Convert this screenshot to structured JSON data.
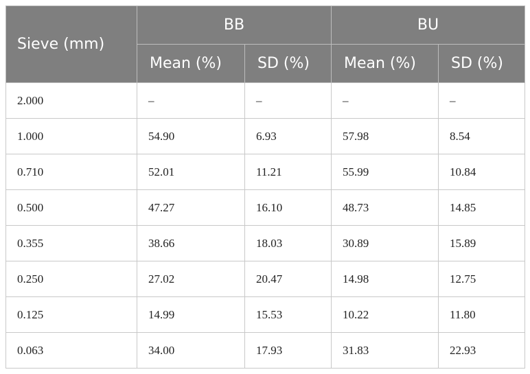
{
  "table": {
    "header": {
      "first": "Sieve (mm)",
      "groups": [
        "BB",
        "BU"
      ],
      "columns": [
        "Mean (%)",
        "SD (%)",
        "Mean (%)",
        "SD (%)"
      ]
    },
    "rows": [
      [
        "2.000",
        "–",
        "–",
        "–",
        "–"
      ],
      [
        "1.000",
        "54.90",
        "6.93",
        "57.98",
        "8.54"
      ],
      [
        "0.710",
        "52.01",
        "11.21",
        "55.99",
        "10.84"
      ],
      [
        "0.500",
        "47.27",
        "16.10",
        "48.73",
        "14.85"
      ],
      [
        "0.355",
        "38.66",
        "18.03",
        "30.89",
        "15.89"
      ],
      [
        "0.250",
        "27.02",
        "20.47",
        "14.98",
        "12.75"
      ],
      [
        "0.125",
        "14.99",
        "15.53",
        "10.22",
        "11.80"
      ],
      [
        "0.063",
        "34.00",
        "17.93",
        "31.83",
        "22.93"
      ]
    ]
  }
}
